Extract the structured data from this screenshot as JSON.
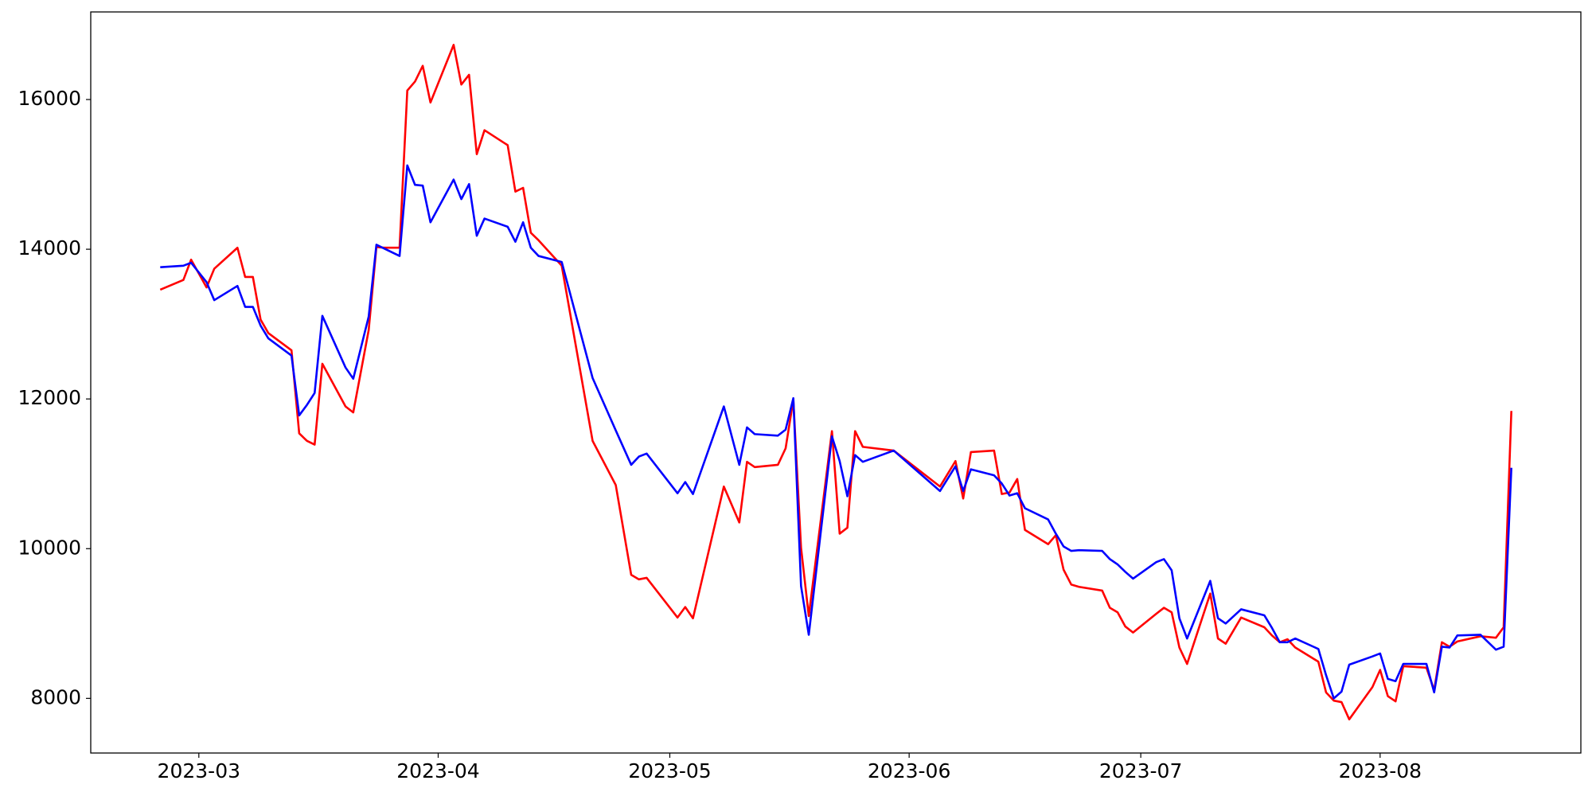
{
  "chart_data": {
    "type": "line",
    "x": [
      19412,
      19415,
      19416,
      19418,
      19419,
      19422,
      19423,
      19424,
      19425,
      19426,
      19429,
      19430,
      19431,
      19432,
      19433,
      19436,
      19437,
      19439,
      19440,
      19441,
      19443,
      19444,
      19445,
      19446,
      19447,
      19450,
      19451,
      19452,
      19453,
      19454,
      19457,
      19458,
      19459,
      19460,
      19461,
      19464,
      19468,
      19471,
      19473,
      19474,
      19475,
      19479,
      19480,
      19481,
      19485,
      19487,
      19488,
      19489,
      19492,
      19493,
      19494,
      19495,
      19496,
      19499,
      19500,
      19501,
      19502,
      19503,
      19507,
      19513,
      19515,
      19516,
      19517,
      19520,
      19521,
      19522,
      19523,
      19524,
      19527,
      19528,
      19529,
      19530,
      19531,
      19534,
      19535,
      19536,
      19537,
      19538,
      19541,
      19542,
      19543,
      19544,
      19545,
      19548,
      19549,
      19550,
      19552,
      19555,
      19556,
      19557,
      19558,
      19559,
      19562,
      19563,
      19564,
      19565,
      19566,
      19569,
      19570,
      19571,
      19572,
      19573,
      19576,
      19577,
      19578,
      19579,
      19580,
      19583,
      19585,
      19586,
      19587
    ],
    "series": [
      {
        "color": "#ff0000",
        "values": [
          13460,
          13590,
          13860,
          13490,
          13740,
          14020,
          13630,
          13630,
          13060,
          12880,
          12650,
          11540,
          11440,
          11390,
          12470,
          11900,
          11820,
          12920,
          14030,
          14020,
          14020,
          16120,
          16240,
          16450,
          15960,
          16730,
          16200,
          16330,
          15270,
          15590,
          15390,
          14770,
          14820,
          14220,
          14120,
          13780,
          11440,
          10850,
          9650,
          9590,
          9610,
          9080,
          9220,
          9070,
          10830,
          10350,
          11160,
          11090,
          11120,
          11340,
          11990,
          10010,
          9100,
          11570,
          10200,
          10280,
          11570,
          11360,
          11310,
          10830,
          11170,
          10670,
          11290,
          11310,
          10730,
          10750,
          10930,
          10250,
          10060,
          10180,
          9720,
          9520,
          9490,
          9440,
          9210,
          9150,
          8960,
          8880,
          9130,
          9210,
          9150,
          8680,
          8460,
          9400,
          8800,
          8730,
          9080,
          8950,
          8840,
          8750,
          8790,
          8680,
          8490,
          8080,
          7970,
          7950,
          7720,
          8150,
          8380,
          8030,
          7960,
          8430,
          8410,
          8110,
          8750,
          8690,
          8760,
          8830,
          8810,
          8950,
          11840
        ]
      },
      {
        "color": "#0000ff",
        "values": [
          13760,
          13780,
          13820,
          13560,
          13320,
          13510,
          13230,
          13230,
          12980,
          12810,
          12580,
          11780,
          11920,
          12080,
          13110,
          12420,
          12270,
          13100,
          14060,
          14010,
          13910,
          15120,
          14860,
          14850,
          14360,
          14930,
          14670,
          14870,
          14180,
          14410,
          14300,
          14100,
          14360,
          14020,
          13910,
          13830,
          12280,
          11580,
          11120,
          11230,
          11270,
          10740,
          10890,
          10730,
          11900,
          11120,
          11620,
          11530,
          11510,
          11590,
          12010,
          9500,
          8850,
          11500,
          11170,
          10700,
          11250,
          11160,
          11310,
          10770,
          11100,
          10770,
          11060,
          10980,
          10870,
          10710,
          10740,
          10540,
          10390,
          10200,
          10030,
          9970,
          9980,
          9970,
          9860,
          9790,
          9690,
          9600,
          9820,
          9860,
          9710,
          9070,
          8800,
          9570,
          9070,
          9000,
          9190,
          9110,
          8940,
          8750,
          8750,
          8800,
          8660,
          8310,
          8000,
          8090,
          8450,
          8560,
          8600,
          8260,
          8230,
          8460,
          8460,
          8080,
          8690,
          8680,
          8840,
          8850,
          8650,
          8690,
          11080
        ]
      }
    ],
    "xlim": [
      19403,
      19596
    ],
    "xticks": [
      {
        "value": 19417,
        "label": "2023-03"
      },
      {
        "value": 19448,
        "label": "2023-04"
      },
      {
        "value": 19478,
        "label": "2023-05"
      },
      {
        "value": 19509,
        "label": "2023-06"
      },
      {
        "value": 19539,
        "label": "2023-07"
      },
      {
        "value": 19570,
        "label": "2023-08"
      }
    ],
    "ylim": [
      7270,
      17170
    ],
    "yticks": [
      8000,
      10000,
      12000,
      14000,
      16000
    ]
  }
}
